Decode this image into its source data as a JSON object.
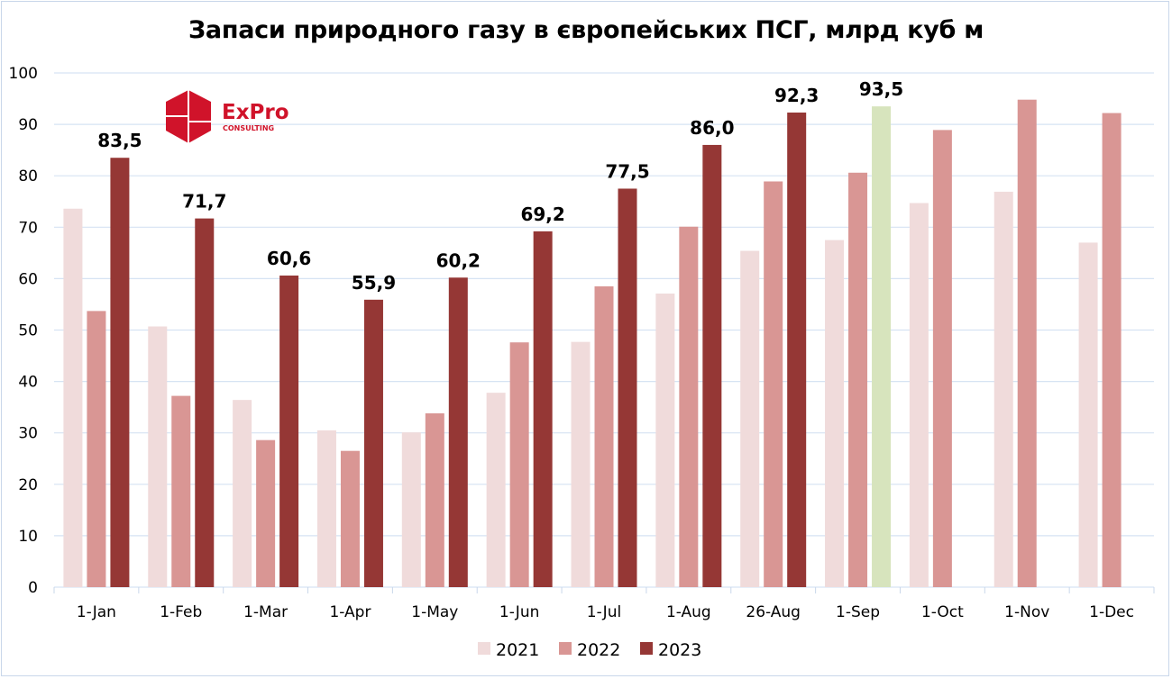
{
  "chart_data": {
    "type": "bar",
    "title": "Запаси природного газу в європейських ПСГ, млрд куб м",
    "xlabel": "",
    "ylabel": "",
    "ylim": [
      0,
      100
    ],
    "yticks": [
      0,
      10,
      20,
      30,
      40,
      50,
      60,
      70,
      80,
      90,
      100
    ],
    "grid": true,
    "legend_position": "bottom",
    "categories": [
      "1-Jan",
      "1-Feb",
      "1-Mar",
      "1-Apr",
      "1-May",
      "1-Jun",
      "1-Jul",
      "1-Aug",
      "26-Aug",
      "1-Sep",
      "1-Oct",
      "1-Nov",
      "1-Dec"
    ],
    "series": [
      {
        "name": "2021",
        "color": "#f0dbdb",
        "values": [
          73.6,
          50.7,
          36.4,
          30.5,
          30.1,
          37.8,
          47.7,
          57.1,
          65.4,
          67.5,
          74.7,
          76.9,
          67.0
        ]
      },
      {
        "name": "2022",
        "color": "#d99694",
        "values": [
          53.7,
          37.2,
          28.6,
          26.5,
          33.8,
          47.6,
          58.5,
          70.1,
          78.9,
          80.6,
          88.9,
          94.8,
          92.2
        ]
      },
      {
        "name": "2023",
        "color": "#953735",
        "highlight_color": "#d7e4bd",
        "highlight_index": 9,
        "values": [
          83.5,
          71.7,
          60.6,
          55.9,
          60.2,
          69.2,
          77.5,
          86.0,
          92.3,
          93.5,
          null,
          null,
          null
        ],
        "labels": [
          "83,5",
          "71,7",
          "60,6",
          "55,9",
          "60,2",
          "69,2",
          "77,5",
          "86,0",
          "92,3",
          "93,5",
          null,
          null,
          null
        ]
      }
    ]
  },
  "logo": {
    "name": "ExPro",
    "subtitle": "CONSULTING",
    "color": "#d0132a"
  }
}
